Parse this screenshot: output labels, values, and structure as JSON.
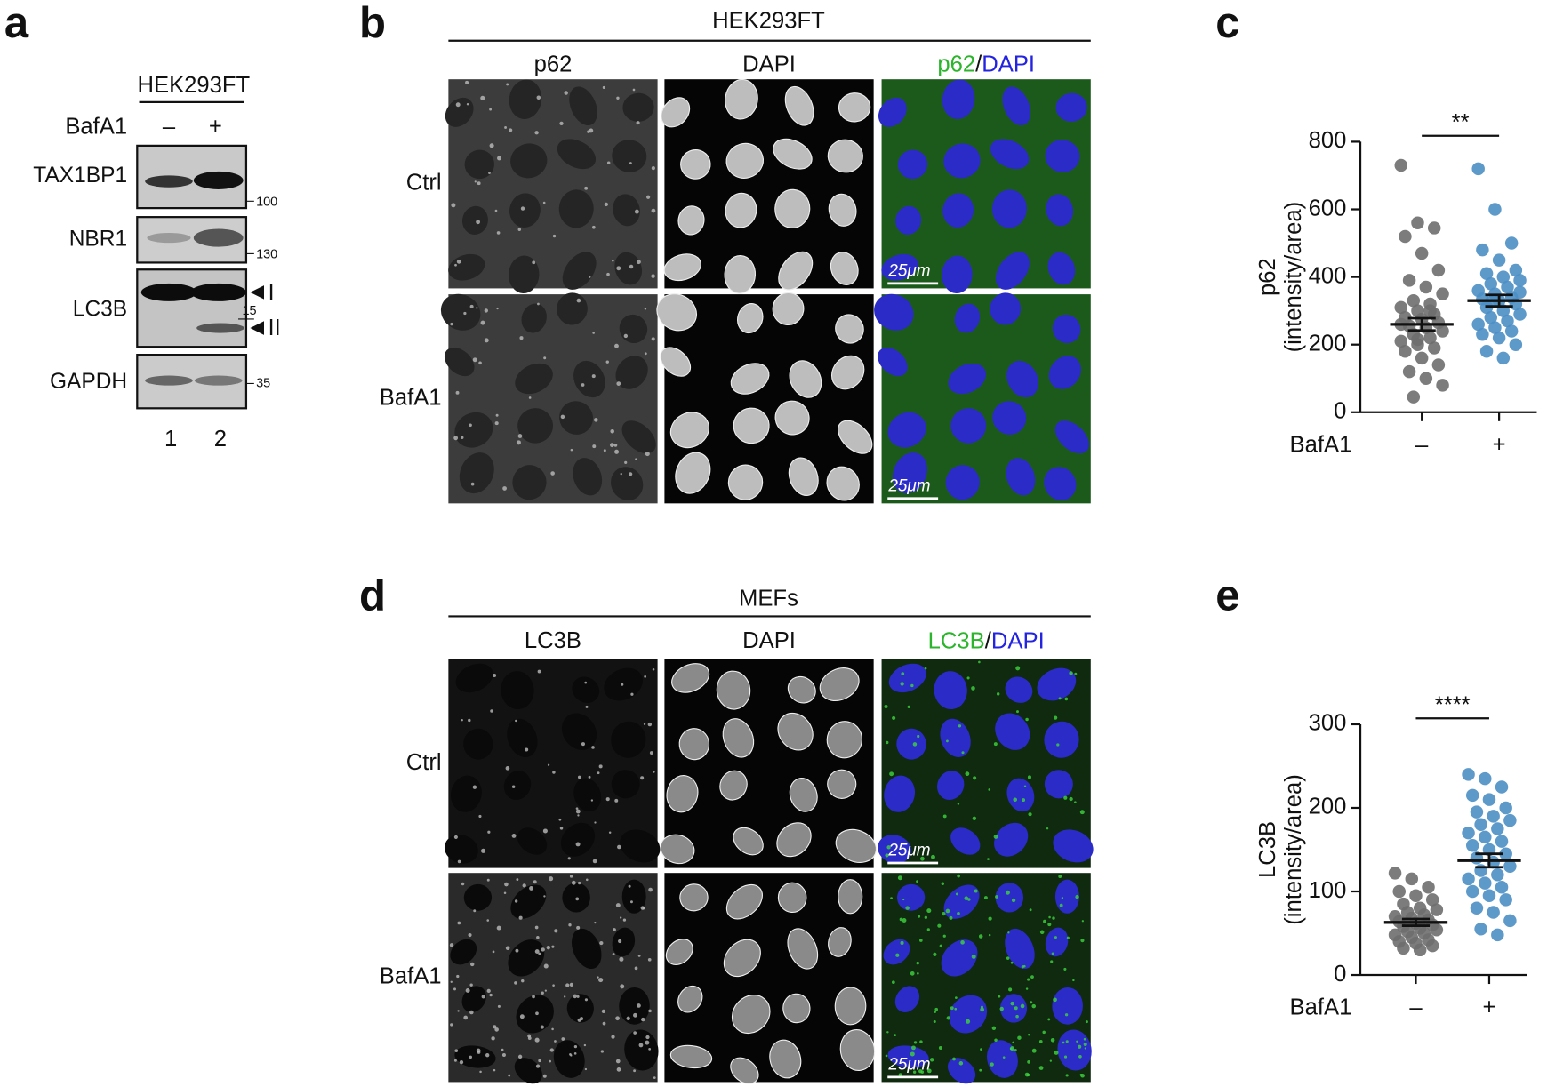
{
  "panel_labels": [
    "a",
    "b",
    "c",
    "d",
    "e"
  ],
  "western_blot": {
    "cell_line": "HEK293FT",
    "treatment": "BafA1",
    "conditions": [
      "–",
      "+"
    ],
    "blots": [
      {
        "label": "TAX1BP1",
        "marker": "100"
      },
      {
        "label": "NBR1",
        "marker": "130"
      },
      {
        "label": "LC3B",
        "marker": "15",
        "bands": [
          "I",
          "II"
        ]
      },
      {
        "label": "GAPDH",
        "marker": "35"
      }
    ],
    "lanes": [
      "1",
      "2"
    ]
  },
  "imaging": [
    {
      "cell_line": "HEK293FT",
      "channels": [
        "p62",
        "DAPI"
      ],
      "merge": [
        "p62",
        "/",
        "DAPI"
      ],
      "rows": [
        "Ctrl",
        "BafA1"
      ],
      "scale_bar": "25μm"
    },
    {
      "cell_line": "MEFs",
      "channels": [
        "LC3B",
        "DAPI"
      ],
      "merge": [
        "LC3B",
        "/",
        "DAPI"
      ],
      "rows": [
        "Ctrl",
        "BafA1"
      ],
      "scale_bar": "25μm"
    }
  ],
  "chart_data": [
    {
      "type": "scatter",
      "ylabel": [
        "p62",
        "(intensity/area)"
      ],
      "xlabel": "BafA1",
      "categories": [
        "–",
        "+"
      ],
      "ylim": [
        0,
        800
      ],
      "yticks": [
        0,
        200,
        400,
        600,
        800
      ],
      "significance": "**",
      "series": [
        {
          "color": "#6e6e6e",
          "mean": 260,
          "sem": 18,
          "values": [
            730,
            560,
            545,
            520,
            470,
            420,
            390,
            370,
            350,
            330,
            320,
            310,
            300,
            290,
            280,
            275,
            265,
            255,
            250,
            240,
            230,
            220,
            210,
            200,
            190,
            180,
            160,
            140,
            120,
            100,
            80,
            45,
            300,
            260,
            215
          ]
        },
        {
          "color": "#4b8fc4",
          "mean": 330,
          "sem": 17,
          "values": [
            720,
            600,
            500,
            480,
            450,
            420,
            410,
            400,
            390,
            380,
            370,
            360,
            350,
            340,
            335,
            330,
            320,
            310,
            300,
            290,
            280,
            270,
            260,
            250,
            240,
            230,
            220,
            200,
            180,
            160,
            355,
            325
          ]
        }
      ]
    },
    {
      "type": "scatter",
      "ylabel": [
        "LC3B",
        "(intensity/area)"
      ],
      "xlabel": "BafA1",
      "categories": [
        "–",
        "+"
      ],
      "ylim": [
        0,
        300
      ],
      "yticks": [
        0,
        100,
        200,
        300
      ],
      "significance": "****",
      "series": [
        {
          "color": "#6e6e6e",
          "mean": 63,
          "sem": 4,
          "values": [
            122,
            115,
            105,
            100,
            95,
            90,
            85,
            80,
            78,
            75,
            72,
            70,
            68,
            66,
            64,
            62,
            60,
            58,
            56,
            54,
            52,
            50,
            48,
            45,
            42,
            40,
            38,
            35,
            32,
            30
          ]
        },
        {
          "color": "#4b8fc4",
          "mean": 137,
          "sem": 8,
          "values": [
            240,
            235,
            225,
            215,
            210,
            200,
            195,
            190,
            185,
            180,
            175,
            170,
            165,
            160,
            155,
            150,
            145,
            140,
            135,
            130,
            125,
            120,
            115,
            110,
            105,
            100,
            95,
            90,
            80,
            75,
            65,
            55,
            48
          ]
        }
      ]
    }
  ]
}
